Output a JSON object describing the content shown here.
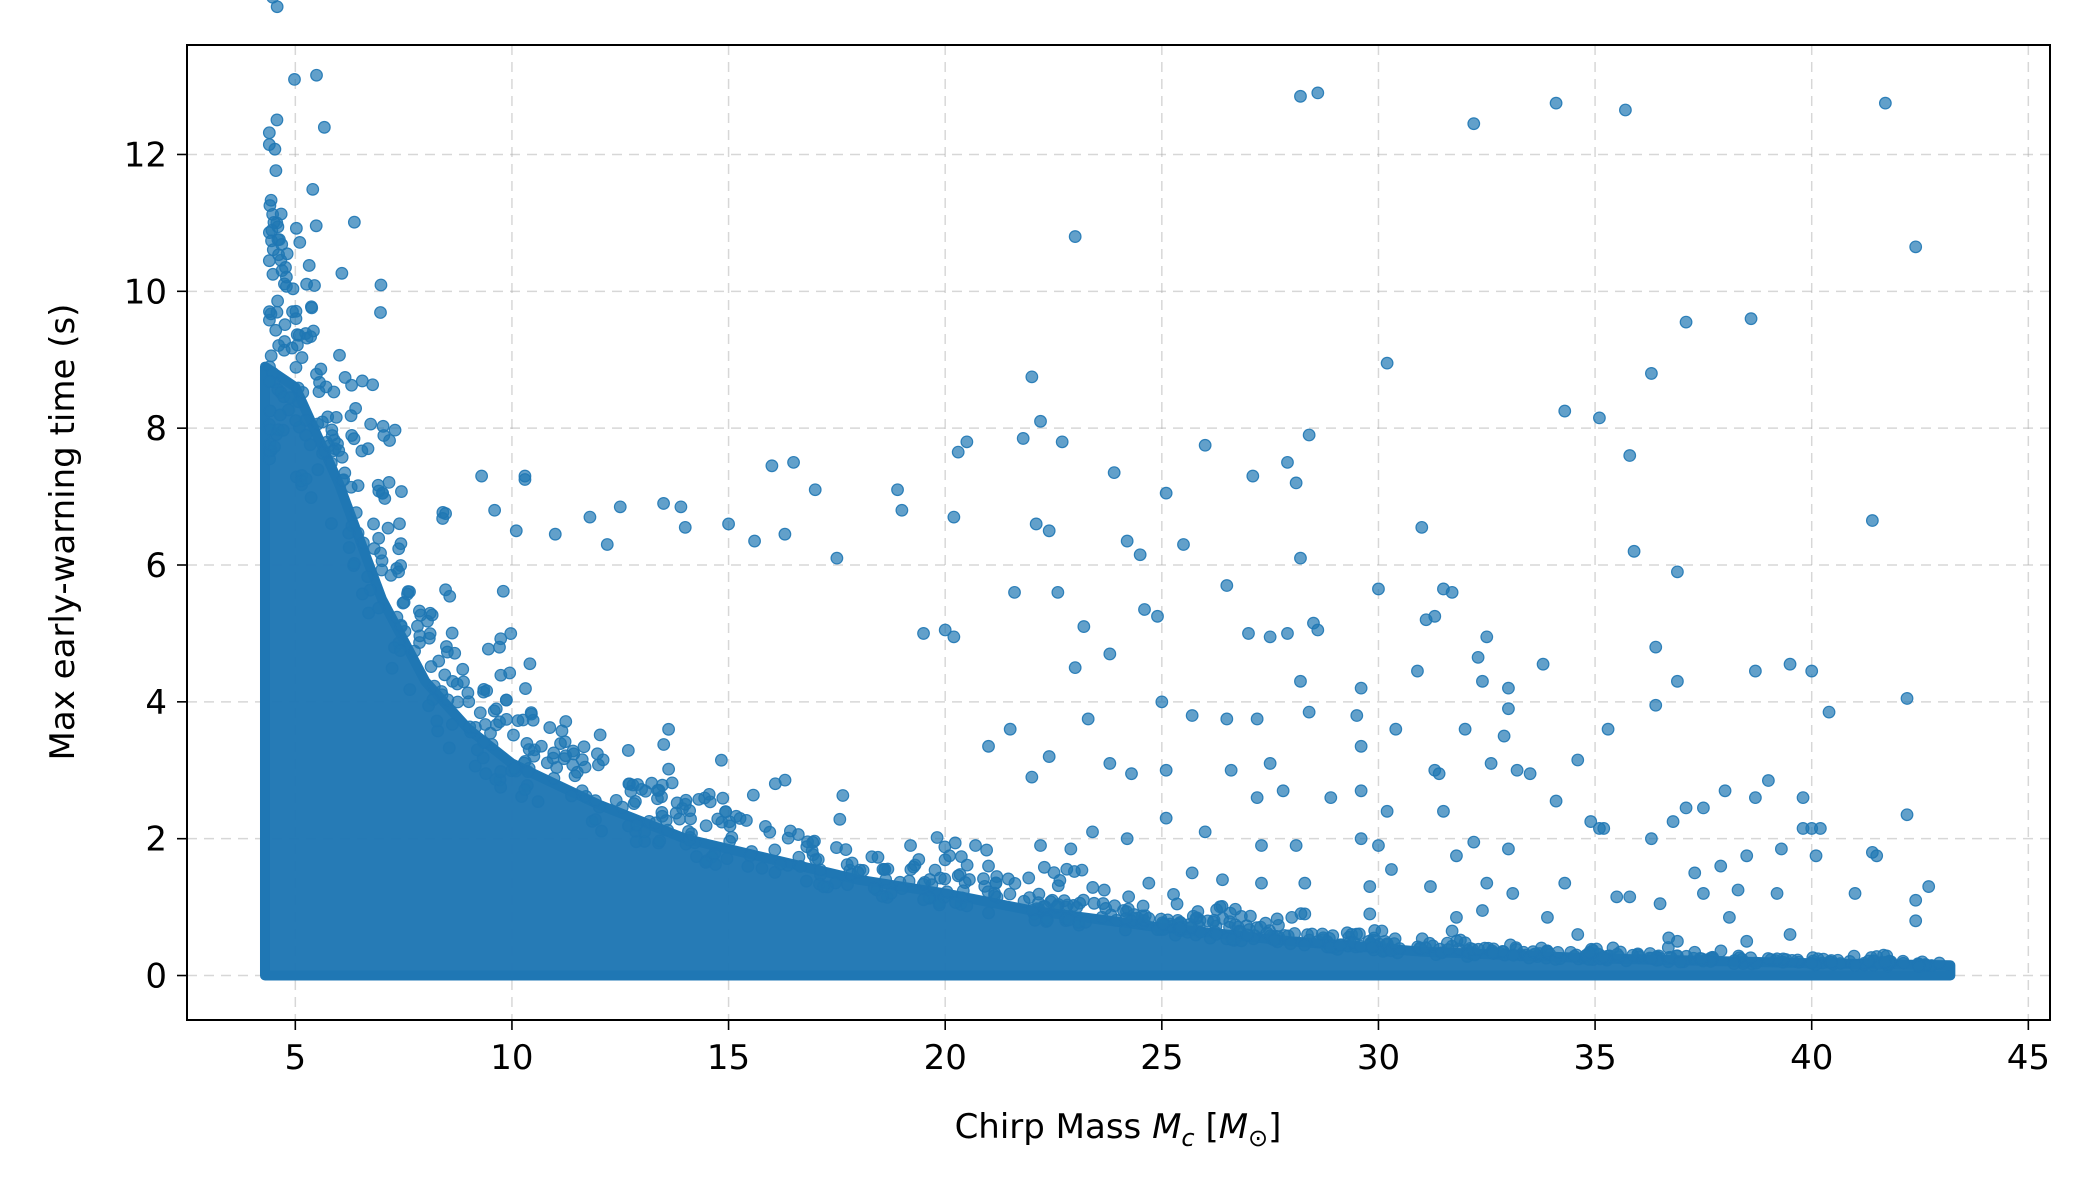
{
  "chart_data": {
    "type": "scatter",
    "xlabel": "Chirp Mass",
    "xlabel_symbol": "M",
    "xlabel_subscript": "c",
    "xlabel_unit_open": "[",
    "xlabel_unit_symbol": "M",
    "xlabel_unit_subscript": "⊙",
    "xlabel_unit_close": "]",
    "ylabel": "Max early-warning time (s)",
    "xlim": [
      2.5,
      45.5
    ],
    "ylim": [
      -0.65,
      13.6
    ],
    "xticks": [
      5,
      10,
      15,
      20,
      25,
      30,
      35,
      40,
      45
    ],
    "yticks": [
      0,
      2,
      4,
      6,
      8,
      10,
      12
    ],
    "grid": true,
    "marker_color": "#1f77b4",
    "marker_alpha": 0.7,
    "series": [
      {
        "dense_region": "filled band from x≈4.3 to x≈43.2, y from 0 up to an envelope decaying from ≈9.0 at x≈4.5",
        "envelope": [
          [
            4.3,
            8.9
          ],
          [
            5,
            8.6
          ],
          [
            6,
            7.2
          ],
          [
            7,
            5.5
          ],
          [
            8,
            4.3
          ],
          [
            9,
            3.6
          ],
          [
            10,
            3.1
          ],
          [
            12,
            2.5
          ],
          [
            14,
            2.0
          ],
          [
            16,
            1.7
          ],
          [
            18,
            1.4
          ],
          [
            20,
            1.2
          ],
          [
            22,
            0.95
          ],
          [
            25,
            0.7
          ],
          [
            28,
            0.5
          ],
          [
            31,
            0.35
          ],
          [
            35,
            0.25
          ],
          [
            40,
            0.18
          ],
          [
            43.2,
            0.15
          ]
        ],
        "points": [
          [
            28.2,
            12.85
          ],
          [
            28.6,
            12.9
          ],
          [
            32.2,
            12.45
          ],
          [
            34.1,
            12.75
          ],
          [
            35.7,
            12.65
          ],
          [
            41.7,
            12.75
          ],
          [
            23.0,
            10.8
          ],
          [
            42.4,
            10.65
          ],
          [
            30.2,
            8.95
          ],
          [
            37.1,
            9.55
          ],
          [
            38.6,
            9.6
          ],
          [
            36.3,
            8.8
          ],
          [
            22.0,
            8.75
          ],
          [
            22.2,
            8.1
          ],
          [
            34.3,
            8.25
          ],
          [
            35.1,
            8.15
          ],
          [
            35.8,
            7.6
          ],
          [
            28.4,
            7.9
          ],
          [
            21.8,
            7.85
          ],
          [
            22.7,
            7.8
          ],
          [
            20.3,
            7.65
          ],
          [
            20.5,
            7.8
          ],
          [
            16.0,
            7.45
          ],
          [
            16.5,
            7.5
          ],
          [
            17.0,
            7.1
          ],
          [
            18.9,
            7.1
          ],
          [
            25.1,
            7.05
          ],
          [
            26.0,
            7.75
          ],
          [
            27.1,
            7.3
          ],
          [
            27.9,
            7.5
          ],
          [
            28.1,
            7.2
          ],
          [
            23.9,
            7.35
          ],
          [
            19.0,
            6.8
          ],
          [
            20.2,
            6.7
          ],
          [
            31.0,
            6.55
          ],
          [
            41.4,
            6.65
          ],
          [
            35.9,
            6.2
          ],
          [
            25.5,
            6.3
          ],
          [
            24.2,
            6.35
          ],
          [
            22.1,
            6.6
          ],
          [
            22.4,
            6.5
          ],
          [
            24.5,
            6.15
          ],
          [
            26.5,
            5.7
          ],
          [
            30.0,
            5.65
          ],
          [
            31.5,
            5.65
          ],
          [
            31.7,
            5.6
          ],
          [
            36.9,
            5.9
          ],
          [
            28.2,
            6.1
          ],
          [
            17.5,
            6.1
          ],
          [
            16.3,
            6.45
          ],
          [
            15.0,
            6.6
          ],
          [
            15.6,
            6.35
          ],
          [
            14.0,
            6.55
          ],
          [
            13.5,
            6.9
          ],
          [
            13.9,
            6.85
          ],
          [
            12.5,
            6.85
          ],
          [
            11.8,
            6.7
          ],
          [
            12.2,
            6.3
          ],
          [
            10.3,
            7.3
          ],
          [
            10.3,
            7.25
          ],
          [
            9.6,
            6.8
          ],
          [
            9.3,
            7.3
          ],
          [
            10.1,
            6.5
          ],
          [
            11.0,
            6.45
          ],
          [
            19.5,
            5.0
          ],
          [
            20.0,
            5.05
          ],
          [
            20.2,
            4.95
          ],
          [
            21.6,
            5.6
          ],
          [
            22.6,
            5.6
          ],
          [
            23.2,
            5.1
          ],
          [
            24.6,
            5.35
          ],
          [
            24.9,
            5.25
          ],
          [
            27.0,
            5.0
          ],
          [
            27.5,
            4.95
          ],
          [
            27.9,
            5.0
          ],
          [
            28.5,
            5.15
          ],
          [
            28.6,
            5.05
          ],
          [
            31.1,
            5.2
          ],
          [
            31.3,
            5.25
          ],
          [
            32.5,
            4.95
          ],
          [
            32.3,
            4.65
          ],
          [
            36.4,
            4.8
          ],
          [
            23.0,
            4.5
          ],
          [
            23.8,
            4.7
          ],
          [
            28.2,
            4.3
          ],
          [
            29.6,
            4.2
          ],
          [
            30.9,
            4.45
          ],
          [
            32.4,
            4.3
          ],
          [
            33.0,
            4.2
          ],
          [
            33.8,
            4.55
          ],
          [
            36.9,
            4.3
          ],
          [
            38.7,
            4.45
          ],
          [
            39.5,
            4.55
          ],
          [
            40.0,
            4.45
          ],
          [
            40.4,
            3.85
          ],
          [
            42.2,
            4.05
          ],
          [
            36.4,
            3.95
          ],
          [
            33.0,
            3.9
          ],
          [
            32.9,
            3.5
          ],
          [
            32.0,
            3.6
          ],
          [
            30.4,
            3.6
          ],
          [
            29.5,
            3.8
          ],
          [
            28.4,
            3.85
          ],
          [
            27.2,
            3.75
          ],
          [
            26.5,
            3.75
          ],
          [
            25.7,
            3.8
          ],
          [
            25.0,
            4.0
          ],
          [
            23.3,
            3.75
          ],
          [
            21.5,
            3.6
          ],
          [
            22.4,
            3.2
          ],
          [
            21.0,
            3.35
          ],
          [
            22.0,
            2.9
          ],
          [
            23.8,
            3.1
          ],
          [
            24.3,
            2.95
          ],
          [
            25.1,
            3.0
          ],
          [
            26.6,
            3.0
          ],
          [
            27.5,
            3.1
          ],
          [
            27.8,
            2.7
          ],
          [
            27.2,
            2.6
          ],
          [
            28.9,
            2.6
          ],
          [
            29.6,
            2.7
          ],
          [
            29.6,
            3.35
          ],
          [
            32.6,
            3.1
          ],
          [
            33.2,
            3.0
          ],
          [
            33.5,
            2.95
          ],
          [
            34.6,
            3.15
          ],
          [
            34.1,
            2.55
          ],
          [
            31.4,
            2.95
          ],
          [
            31.3,
            3.0
          ],
          [
            30.2,
            2.4
          ],
          [
            31.5,
            2.4
          ],
          [
            35.3,
            3.6
          ],
          [
            37.1,
            2.45
          ],
          [
            37.5,
            2.45
          ],
          [
            38.0,
            2.7
          ],
          [
            38.7,
            2.6
          ],
          [
            39.0,
            2.85
          ],
          [
            39.8,
            2.6
          ],
          [
            36.8,
            2.25
          ],
          [
            35.1,
            2.15
          ],
          [
            35.2,
            2.15
          ],
          [
            34.9,
            2.25
          ],
          [
            42.2,
            2.35
          ],
          [
            40.0,
            2.15
          ],
          [
            39.8,
            2.15
          ],
          [
            40.2,
            2.15
          ],
          [
            29.6,
            2.0
          ],
          [
            28.1,
            1.9
          ],
          [
            27.3,
            1.9
          ],
          [
            26.0,
            2.1
          ],
          [
            25.1,
            2.3
          ],
          [
            24.2,
            2.0
          ],
          [
            23.4,
            2.1
          ],
          [
            22.9,
            1.85
          ],
          [
            22.2,
            1.9
          ],
          [
            21.0,
            1.6
          ],
          [
            20.7,
            1.9
          ],
          [
            20.1,
            1.75
          ],
          [
            19.2,
            1.9
          ],
          [
            18.6,
            1.55
          ],
          [
            30.0,
            1.9
          ],
          [
            32.2,
            1.95
          ],
          [
            33.0,
            1.85
          ],
          [
            36.3,
            2.0
          ],
          [
            37.3,
            1.5
          ],
          [
            37.9,
            1.6
          ],
          [
            38.5,
            1.75
          ],
          [
            39.3,
            1.85
          ],
          [
            40.1,
            1.75
          ],
          [
            41.4,
            1.8
          ],
          [
            41.5,
            1.75
          ],
          [
            30.3,
            1.55
          ],
          [
            31.8,
            1.75
          ],
          [
            32.5,
            1.35
          ],
          [
            33.1,
            1.2
          ],
          [
            31.2,
            1.3
          ],
          [
            29.8,
            1.3
          ],
          [
            28.3,
            1.35
          ],
          [
            27.3,
            1.35
          ],
          [
            26.4,
            1.4
          ],
          [
            25.7,
            1.5
          ],
          [
            24.7,
            1.35
          ],
          [
            34.3,
            1.35
          ],
          [
            35.5,
            1.15
          ],
          [
            35.8,
            1.15
          ],
          [
            36.5,
            1.05
          ],
          [
            37.5,
            1.2
          ],
          [
            38.3,
            1.25
          ],
          [
            39.2,
            1.2
          ],
          [
            41.0,
            1.2
          ],
          [
            42.4,
            1.1
          ],
          [
            42.7,
            1.3
          ],
          [
            42.4,
            0.8
          ],
          [
            36.7,
            0.55
          ],
          [
            36.9,
            0.5
          ],
          [
            38.1,
            0.85
          ],
          [
            38.5,
            0.5
          ],
          [
            39.5,
            0.6
          ],
          [
            34.6,
            0.6
          ],
          [
            33.9,
            0.85
          ],
          [
            31.7,
            0.65
          ],
          [
            31.8,
            0.85
          ],
          [
            32.4,
            0.95
          ],
          [
            29.8,
            0.9
          ],
          [
            28.0,
            0.85
          ],
          [
            28.3,
            0.9
          ]
        ]
      }
    ]
  }
}
